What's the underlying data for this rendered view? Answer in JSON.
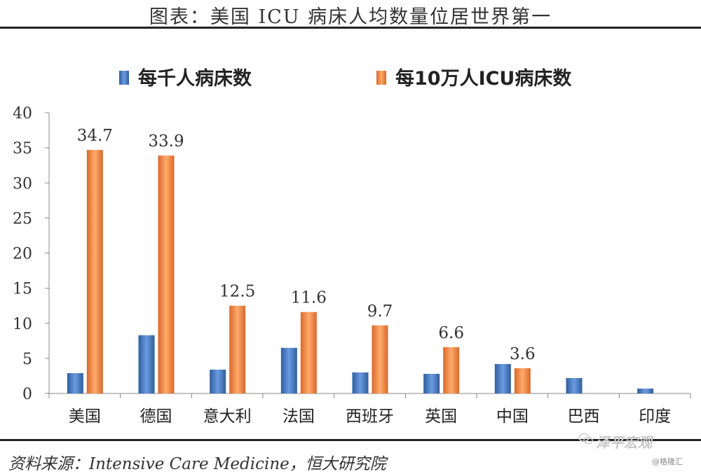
{
  "header": {
    "title": "图表：美国 ICU 病床人均数量位居世界第一"
  },
  "footer": {
    "source": "资料来源：Intensive Care Medicine，恒大研究院",
    "watermark_main": "泽平宏观",
    "watermark_sub": "@格隆汇"
  },
  "colors": {
    "series1": "#4a7ebb",
    "series2": "#f08a3c",
    "axis": "#888888",
    "text": "#333333"
  },
  "chart_data": {
    "type": "bar",
    "categories": [
      "美国",
      "德国",
      "意大利",
      "法国",
      "西班牙",
      "英国",
      "中国",
      "巴西",
      "印度"
    ],
    "series": [
      {
        "name": "每千人病床数",
        "values": [
          2.9,
          8.3,
          3.4,
          6.5,
          3.0,
          2.8,
          4.2,
          2.2,
          0.7
        ]
      },
      {
        "name": "每10万人ICU病床数",
        "values": [
          34.7,
          33.9,
          12.5,
          11.6,
          9.7,
          6.6,
          3.6,
          null,
          null
        ]
      }
    ],
    "data_labels": [
      "34.7",
      "33.9",
      "12.5",
      "11.6",
      "9.7",
      "6.6",
      "3.6"
    ],
    "yticks": [
      "0",
      "5",
      "10",
      "15",
      "20",
      "25",
      "30",
      "35",
      "40"
    ],
    "ylim": [
      0,
      40
    ],
    "grid": false,
    "legend": "top"
  }
}
